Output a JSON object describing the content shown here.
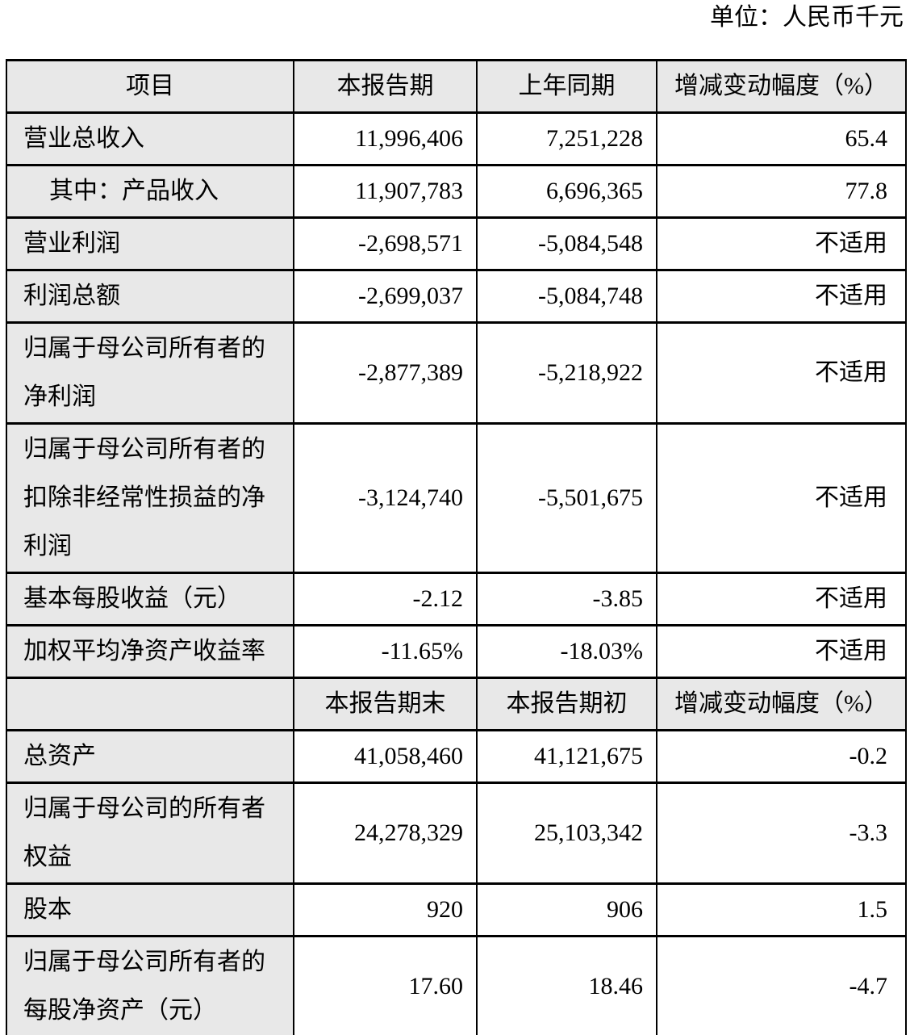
{
  "unit_label": "单位：人民币千元",
  "colors": {
    "header_bg": "#e8e8e8",
    "label_column_bg": "#e8e8e8",
    "border": "#000000",
    "text": "#000000",
    "page_bg": "#ffffff"
  },
  "table": {
    "sections": [
      {
        "header": {
          "label": "项目",
          "current": "本报告期",
          "prior": "上年同期",
          "change": "增减变动幅度（%）"
        },
        "rows": [
          {
            "label": "营业总收入",
            "indent": false,
            "current": "11,996,406",
            "prior": "7,251,228",
            "change": "65.4"
          },
          {
            "label": "其中：产品收入",
            "indent": true,
            "current": "11,907,783",
            "prior": "6,696,365",
            "change": "77.8"
          },
          {
            "label": "营业利润",
            "indent": false,
            "current": "-2,698,571",
            "prior": "-5,084,548",
            "change": "不适用"
          },
          {
            "label": "利润总额",
            "indent": false,
            "current": "-2,699,037",
            "prior": "-5,084,748",
            "change": "不适用"
          },
          {
            "label": "归属于母公司所有者的净利润",
            "indent": false,
            "current": "-2,877,389",
            "prior": "-5,218,922",
            "change": "不适用"
          },
          {
            "label": "归属于母公司所有者的扣除非经常性损益的净利润",
            "indent": false,
            "current": "-3,124,740",
            "prior": "-5,501,675",
            "change": "不适用"
          },
          {
            "label": "基本每股收益（元）",
            "indent": false,
            "current": "-2.12",
            "prior": "-3.85",
            "change": "不适用"
          },
          {
            "label": "加权平均净资产收益率",
            "indent": false,
            "current": "-11.65%",
            "prior": "-18.03%",
            "change": "不适用"
          }
        ]
      },
      {
        "header": {
          "label": "",
          "current": "本报告期末",
          "prior": "本报告期初",
          "change": "增减变动幅度（%）"
        },
        "rows": [
          {
            "label": "总资产",
            "indent": false,
            "current": "41,058,460",
            "prior": "41,121,675",
            "change": "-0.2"
          },
          {
            "label": "归属于母公司的所有者权益",
            "indent": false,
            "current": "24,278,329",
            "prior": "25,103,342",
            "change": "-3.3"
          },
          {
            "label": "股本",
            "indent": false,
            "current": "920",
            "prior": "906",
            "change": "1.5"
          },
          {
            "label": "归属于母公司所有者的每股净资产（元）",
            "indent": false,
            "current": "17.60",
            "prior": "18.46",
            "change": "-4.7"
          }
        ]
      }
    ]
  }
}
